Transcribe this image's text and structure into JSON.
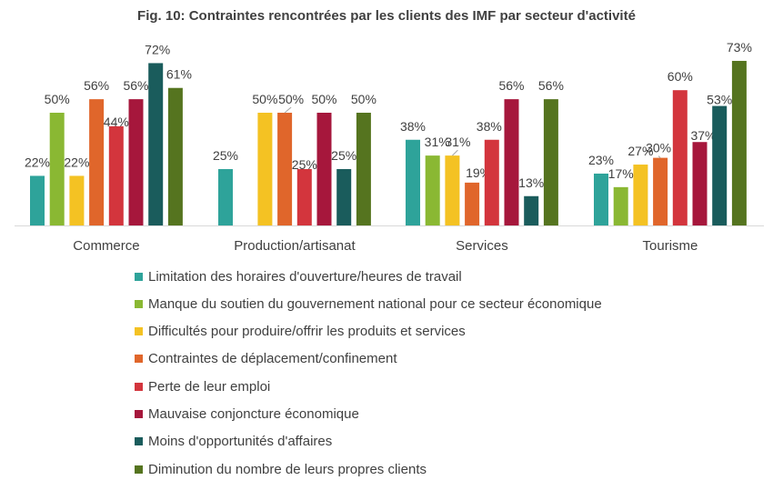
{
  "chart_data": {
    "type": "bar",
    "title": "Fig. 10: Contraintes rencontrées par les clients des IMF par secteur d'activité",
    "categories": [
      "Commerce",
      "Production/artisanat",
      "Services",
      "Tourisme"
    ],
    "ylim": [
      0,
      80
    ],
    "grid": false,
    "legend_position": "bottom",
    "value_suffix": "%",
    "series": [
      {
        "name": "Limitation des horaires d'ouverture/heures de travail",
        "color": "#2ea39a",
        "values": [
          22,
          25,
          38,
          23
        ]
      },
      {
        "name": "Manque du soutien du gouvernement national pour ce secteur économique",
        "color": "#8ab833",
        "values": [
          50,
          0,
          31,
          17
        ]
      },
      {
        "name": "Difficultés pour produire/offrir les produits et services",
        "color": "#f4c223",
        "values": [
          22,
          50,
          31,
          27
        ]
      },
      {
        "name": "Contraintes de déplacement/confinement",
        "color": "#e0662b",
        "values": [
          56,
          50,
          19,
          30
        ]
      },
      {
        "name": "Perte de leur emploi",
        "color": "#d3353d",
        "values": [
          44,
          25,
          38,
          60
        ]
      },
      {
        "name": "Mauvaise conjoncture économique",
        "color": "#a6173c",
        "values": [
          56,
          50,
          56,
          37
        ]
      },
      {
        "name": "Moins d'opportunités d'affaires",
        "color": "#1a5c5c",
        "values": [
          72,
          25,
          13,
          53
        ]
      },
      {
        "name": "Diminution du nombre de leurs propres clients",
        "color": "#55741f",
        "values": [
          61,
          50,
          56,
          73
        ]
      }
    ]
  }
}
